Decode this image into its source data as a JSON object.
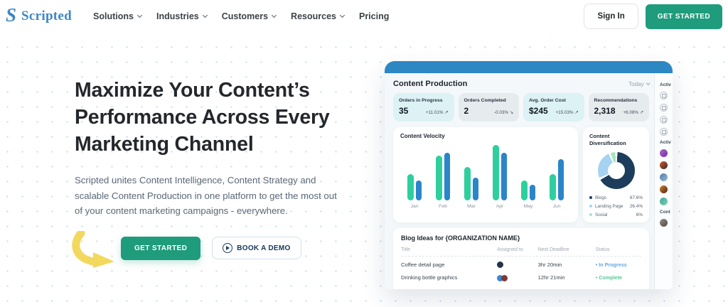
{
  "nav": {
    "brand": "Scripted",
    "items": [
      {
        "label": "Solutions",
        "caret": true
      },
      {
        "label": "Industries",
        "caret": true
      },
      {
        "label": "Customers",
        "caret": true
      },
      {
        "label": "Resources",
        "caret": true
      },
      {
        "label": "Pricing",
        "caret": false
      }
    ],
    "sign_in_label": "Sign In",
    "get_started_label": "GET STARTED",
    "brand_color": "#3e86c4",
    "accent_green": "#1e9c7c"
  },
  "hero": {
    "title": "Maximize Your Content’s Performance Across Every Marketing Channel",
    "description": "Scripted unites Content Intelligence, Content Strategy and scalable Content Production in one platform to get the most out of your content marketing campaigns - everywhere.",
    "get_started_label": "GET STARTED",
    "book_demo_label": "BOOK A DEMO",
    "arrow_color": "#f3d85e"
  },
  "dashboard": {
    "header_color": "#2d87c3",
    "title": "Content Production",
    "period_label": "Today",
    "stats": [
      {
        "label": "Orders in Progress",
        "value": "35",
        "delta": "+11.01%",
        "trend": "up",
        "bg": "#dcf2f5"
      },
      {
        "label": "Orders Completed",
        "value": "2",
        "delta": "-0.03%",
        "trend": "down",
        "bg": "#e6ebee"
      },
      {
        "label": "Avg. Order Cost",
        "value": "$245",
        "delta": "+15.03%",
        "trend": "up",
        "bg": "#dcf2f5"
      },
      {
        "label": "Recommendations",
        "value": "2,318",
        "delta": "+6.08%",
        "trend": "up",
        "bg": "#e6ebee"
      }
    ],
    "blog_ideas": {
      "title": "Blog Ideas for {ORGANIZATION NAME}",
      "columns": [
        "Title",
        "Assigned to",
        "Next Deadline",
        "Status"
      ],
      "rows": [
        {
          "title": "Coffee detail page",
          "avatars": [
            "#22344a"
          ],
          "deadline": "3hr 20min",
          "status": "In Progress",
          "status_color": "#64a7e3"
        },
        {
          "title": "Drinking bottle graphics",
          "avatars": [
            "#3c86d6",
            "#7c3b32"
          ],
          "deadline": "12hr 21min",
          "status": "Complete",
          "status_color": "#57c89b"
        }
      ]
    },
    "sidebar": {
      "sections": [
        {
          "label": "Activ",
          "type": "icons",
          "icons": [
            "printer-icon",
            "person-icon",
            "printer-icon",
            "signal-icon"
          ]
        },
        {
          "label": "Activ",
          "type": "avatars",
          "avatars": [
            "#b06ab3,#6f2dbd",
            "#e25822,#2d2d2d",
            "#4a7fb5,#9fb8cc",
            "#d98324,#43281c",
            "#3aa8a0,#7fd1ae"
          ]
        },
        {
          "label": "Cont",
          "type": "avatars",
          "avatars": [
            "#8a8f94,#5b4636"
          ]
        }
      ]
    }
  },
  "chart_data": [
    {
      "type": "bar",
      "title": "Content Velocity",
      "categories": [
        "Jan",
        "Feb",
        "Mar",
        "Apr",
        "May",
        "Jun"
      ],
      "series": [
        {
          "name": "green-series",
          "color": "#2ecf9e",
          "values": [
            48,
            81,
            60,
            100,
            36,
            48
          ]
        },
        {
          "name": "blue-series",
          "color": "#2b85c8",
          "values": [
            36,
            86,
            41,
            86,
            28,
            75
          ]
        }
      ],
      "ylim": [
        0,
        100
      ],
      "legend": false
    },
    {
      "type": "pie",
      "title": "Content Diversification",
      "donut": true,
      "legend_position": "bottom",
      "slices": [
        {
          "label": "Blogs",
          "value": 67.6,
          "display": "67.6%",
          "color": "#1d3d5c"
        },
        {
          "label": "Landing Page",
          "value": 26.4,
          "display": "26.4%",
          "color": "#a5d3f0"
        },
        {
          "label": "Social",
          "value": 6,
          "display": "6%",
          "color": "#a8e3c4"
        }
      ]
    }
  ]
}
